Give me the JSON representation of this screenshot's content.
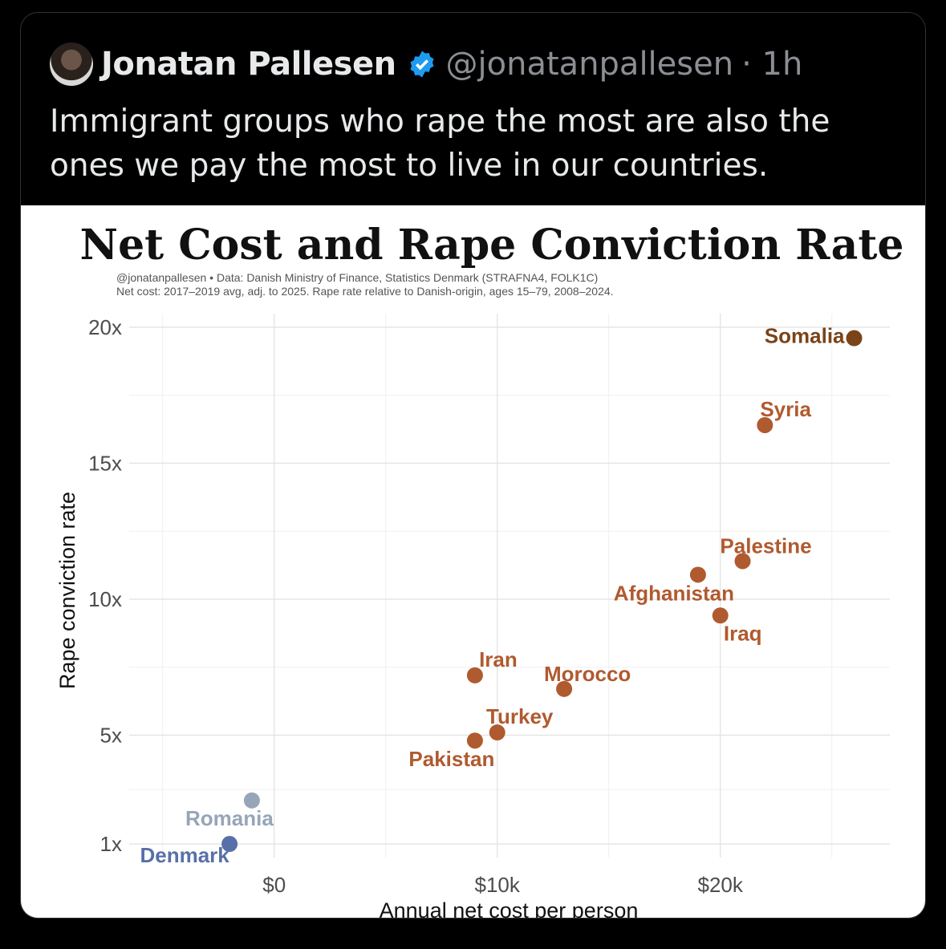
{
  "tweet": {
    "author_name": "Jonatan Pallesen",
    "handle": "@jonatanpallesen",
    "time": "· 1h",
    "verified": true,
    "text": "Immigrant groups who rape the most are also the ones we pay the most to live in our countries."
  },
  "chart_data": {
    "type": "scatter",
    "title": "Net Cost and Rape Conviction Rate",
    "subtitle_lines": [
      "@jonatanpallesen • Data: Danish Ministry of Finance, Statistics Denmark (STRAFNA4, FOLK1C)",
      "Net cost: 2017–2019 avg, adj. to 2025. Rape rate relative to Danish-origin, ages 15–79, 2008–2024."
    ],
    "xlabel": "Annual net cost per person",
    "ylabel": "Rape conviction rate",
    "xlim": [
      -6500,
      27600
    ],
    "ylim": [
      0.5,
      20.5
    ],
    "x_ticks": [
      {
        "value": 0,
        "label": "$0"
      },
      {
        "value": 10000,
        "label": "$10k"
      },
      {
        "value": 20000,
        "label": "$20k"
      }
    ],
    "y_ticks": [
      {
        "value": 1,
        "label": "1x"
      },
      {
        "value": 5,
        "label": "5x"
      },
      {
        "value": 10,
        "label": "10x"
      },
      {
        "value": 15,
        "label": "15x"
      },
      {
        "value": 20,
        "label": "20x"
      }
    ],
    "grid": true,
    "points": [
      {
        "label": "Somalia",
        "x": 26000,
        "y": 19.6,
        "color": "#7a4418"
      },
      {
        "label": "Syria",
        "x": 22000,
        "y": 16.4,
        "color": "#b05a2f"
      },
      {
        "label": "Palestine",
        "x": 21000,
        "y": 11.4,
        "color": "#b05a2f"
      },
      {
        "label": "Afghanistan",
        "x": 19000,
        "y": 10.9,
        "color": "#b05a2f"
      },
      {
        "label": "Iraq",
        "x": 20000,
        "y": 9.4,
        "color": "#b05a2f"
      },
      {
        "label": "Iran",
        "x": 9000,
        "y": 7.2,
        "color": "#b05a2f"
      },
      {
        "label": "Morocco",
        "x": 13000,
        "y": 6.7,
        "color": "#b05a2f"
      },
      {
        "label": "Turkey",
        "x": 10000,
        "y": 5.1,
        "color": "#b05a2f"
      },
      {
        "label": "Pakistan",
        "x": 9000,
        "y": 4.8,
        "color": "#b05a2f"
      },
      {
        "label": "Romania",
        "x": -1000,
        "y": 2.6,
        "color": "#97a5b8"
      },
      {
        "label": "Denmark",
        "x": -2000,
        "y": 1.0,
        "color": "#5870a8"
      }
    ]
  }
}
